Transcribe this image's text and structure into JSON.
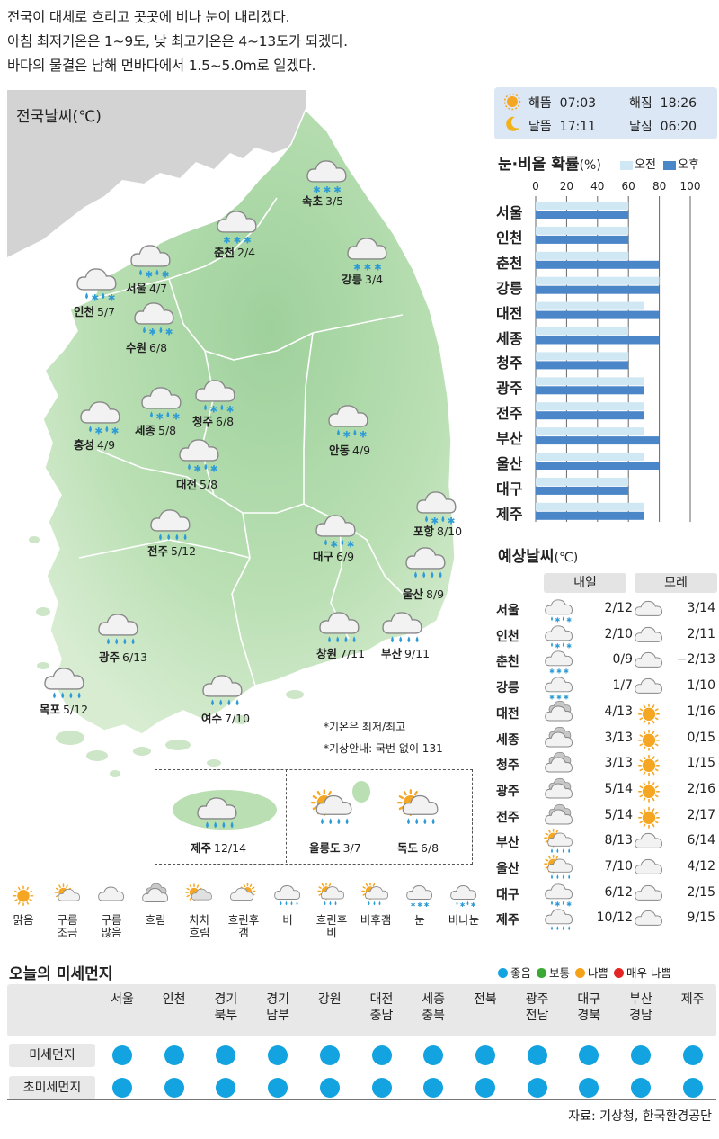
{
  "summary": [
    "전국이 대체로 흐리고 곳곳에 비나 눈이 내리겠다.",
    "아침 최저기온은 1~9도, 낮 최고기온은 4~13도가 되겠다.",
    "바다의 물결은 남해 먼바다에서 1.5~5.0m로 일겠다."
  ],
  "map": {
    "label": "전국날씨(℃)",
    "cities": [
      {
        "name": "속초",
        "temp": "3/5",
        "icon": "snow-icon"
      },
      {
        "name": "춘천",
        "temp": "2/4",
        "icon": "snow-icon"
      },
      {
        "name": "강릉",
        "temp": "3/4",
        "icon": "snow-icon"
      },
      {
        "name": "서울",
        "temp": "4/7",
        "icon": "rain-snow-icon"
      },
      {
        "name": "인천",
        "temp": "5/7",
        "icon": "rain-snow-icon"
      },
      {
        "name": "수원",
        "temp": "6/8",
        "icon": "rain-snow-icon"
      },
      {
        "name": "청주",
        "temp": "6/8",
        "icon": "rain-snow-icon"
      },
      {
        "name": "세종",
        "temp": "5/8",
        "icon": "rain-snow-icon"
      },
      {
        "name": "홍성",
        "temp": "4/9",
        "icon": "rain-snow-icon"
      },
      {
        "name": "대전",
        "temp": "5/8",
        "icon": "rain-snow-icon"
      },
      {
        "name": "안동",
        "temp": "4/9",
        "icon": "rain-snow-icon"
      },
      {
        "name": "포항",
        "temp": "8/10",
        "icon": "rain-snow-icon"
      },
      {
        "name": "전주",
        "temp": "5/12",
        "icon": "rain-icon"
      },
      {
        "name": "대구",
        "temp": "6/9",
        "icon": "rain-snow-icon"
      },
      {
        "name": "울산",
        "temp": "8/9",
        "icon": "rain-icon"
      },
      {
        "name": "광주",
        "temp": "6/13",
        "icon": "rain-icon"
      },
      {
        "name": "창원",
        "temp": "7/11",
        "icon": "rain-icon"
      },
      {
        "name": "부산",
        "temp": "9/11",
        "icon": "rain-icon"
      },
      {
        "name": "목포",
        "temp": "5/12",
        "icon": "rain-icon"
      },
      {
        "name": "여수",
        "temp": "7/10",
        "icon": "rain-icon"
      }
    ],
    "notes": [
      "*기온은 최저/최고",
      "*기상안내: 국번 없이 131"
    ],
    "islands": [
      {
        "name": "제주",
        "temp": "12/14",
        "icon": "rain-icon"
      },
      {
        "name": "울릉도",
        "temp": "3/7",
        "icon": "sun-rain-icon"
      },
      {
        "name": "독도",
        "temp": "6/8",
        "icon": "sun-rain-icon"
      }
    ]
  },
  "sun": {
    "sunrise_label": "해뜸",
    "sunrise": "07:03",
    "sunset_label": "해짐",
    "sunset": "18:26",
    "moonrise_label": "달뜸",
    "moonrise": "17:11",
    "moonset_label": "달짐",
    "moonset": "06:20"
  },
  "precip": {
    "title": "눈·비올 확률",
    "unit": "(%)",
    "legend_am": "오전",
    "legend_pm": "오후",
    "colors": {
      "am": "#cfe8f4",
      "pm": "#4a86c8"
    }
  },
  "chart_data": {
    "type": "bar",
    "title": "눈·비올 확률(%)",
    "orientation": "horizontal",
    "xlim": [
      0,
      100
    ],
    "ticks": [
      "0",
      "20",
      "40",
      "60",
      "80",
      "100"
    ],
    "categories": [
      "서울",
      "인천",
      "춘천",
      "강릉",
      "대전",
      "세종",
      "청주",
      "광주",
      "전주",
      "부산",
      "울산",
      "대구",
      "제주"
    ],
    "series": [
      {
        "name": "오전",
        "values": [
          60,
          60,
          60,
          80,
          70,
          60,
          60,
          70,
          70,
          70,
          70,
          60,
          70
        ]
      },
      {
        "name": "오후",
        "values": [
          60,
          60,
          80,
          80,
          80,
          80,
          60,
          70,
          70,
          80,
          80,
          60,
          70
        ]
      }
    ]
  },
  "forecast": {
    "title": "예상날씨",
    "unit": "(℃)",
    "day1": "내일",
    "day2": "모레",
    "rows": [
      {
        "city": "서울",
        "t1": "2/12",
        "i1": "rain-snow-icon",
        "t2": "3/14",
        "i2": "cloudy-icon"
      },
      {
        "city": "인천",
        "t1": "2/10",
        "i1": "rain-snow-icon",
        "t2": "2/11",
        "i2": "cloudy-icon"
      },
      {
        "city": "춘천",
        "t1": "0/9",
        "i1": "snow-icon",
        "t2": "−2/13",
        "i2": "cloudy-icon"
      },
      {
        "city": "강릉",
        "t1": "1/7",
        "i1": "snow-icon",
        "t2": "1/10",
        "i2": "cloudy-icon"
      },
      {
        "city": "대전",
        "t1": "4/13",
        "i1": "overcast-icon",
        "t2": "1/16",
        "i2": "sunny-icon"
      },
      {
        "city": "세종",
        "t1": "3/13",
        "i1": "overcast-icon",
        "t2": "0/15",
        "i2": "sunny-icon"
      },
      {
        "city": "청주",
        "t1": "3/13",
        "i1": "overcast-icon",
        "t2": "1/15",
        "i2": "sunny-icon"
      },
      {
        "city": "광주",
        "t1": "5/14",
        "i1": "overcast-icon",
        "t2": "2/16",
        "i2": "sunny-icon"
      },
      {
        "city": "전주",
        "t1": "5/14",
        "i1": "overcast-icon",
        "t2": "2/17",
        "i2": "sunny-icon"
      },
      {
        "city": "부산",
        "t1": "8/13",
        "i1": "sun-rain-icon",
        "t2": "6/14",
        "i2": "cloudy-icon"
      },
      {
        "city": "울산",
        "t1": "7/10",
        "i1": "sun-rain-icon",
        "t2": "4/12",
        "i2": "cloudy-icon"
      },
      {
        "city": "대구",
        "t1": "6/12",
        "i1": "rain-snow-icon",
        "t2": "2/15",
        "i2": "cloudy-icon"
      },
      {
        "city": "제주",
        "t1": "10/12",
        "i1": "rain-icon",
        "t2": "9/15",
        "i2": "cloudy-icon"
      }
    ]
  },
  "weather_legend": [
    {
      "label": "맑음",
      "icon": "sunny-icon"
    },
    {
      "label": "구름\n조금",
      "icon": "partly-cloudy-icon"
    },
    {
      "label": "구름\n많음",
      "icon": "cloudy-icon"
    },
    {
      "label": "흐림",
      "icon": "overcast-icon"
    },
    {
      "label": "차차\n흐림",
      "icon": "gradually-cloudy-icon"
    },
    {
      "label": "흐린후\n갬",
      "icon": "clearing-icon"
    },
    {
      "label": "비",
      "icon": "rain-icon"
    },
    {
      "label": "흐린후\n비",
      "icon": "cloudy-then-rain-icon"
    },
    {
      "label": "비후갬",
      "icon": "rain-then-clear-icon"
    },
    {
      "label": "눈",
      "icon": "snow-icon"
    },
    {
      "label": "비나눈",
      "icon": "rain-snow-icon"
    }
  ],
  "dust": {
    "title": "오늘의 미세먼지",
    "legend": [
      {
        "label": "좋음",
        "color": "#12a3e0"
      },
      {
        "label": "보통",
        "color": "#3aaa35"
      },
      {
        "label": "나쁨",
        "color": "#f5a21b"
      },
      {
        "label": "매우 나쁨",
        "color": "#e42526"
      }
    ],
    "regions": [
      "서울",
      "인천",
      "경기\n북부",
      "경기\n남부",
      "강원",
      "대전\n충남",
      "세종\n충북",
      "전북",
      "광주\n전남",
      "대구\n경북",
      "부산\n경남",
      "제주"
    ],
    "rows": [
      {
        "label": "미세먼지",
        "values": [
          "좋음",
          "좋음",
          "좋음",
          "좋음",
          "좋음",
          "좋음",
          "좋음",
          "좋음",
          "좋음",
          "좋음",
          "좋음",
          "좋음"
        ]
      },
      {
        "label": "초미세먼지",
        "values": [
          "좋음",
          "좋음",
          "좋음",
          "좋음",
          "좋음",
          "좋음",
          "좋음",
          "좋음",
          "좋음",
          "좋음",
          "좋음",
          "좋음"
        ]
      }
    ]
  },
  "source": "자료: 기상청, 한국환경공단"
}
